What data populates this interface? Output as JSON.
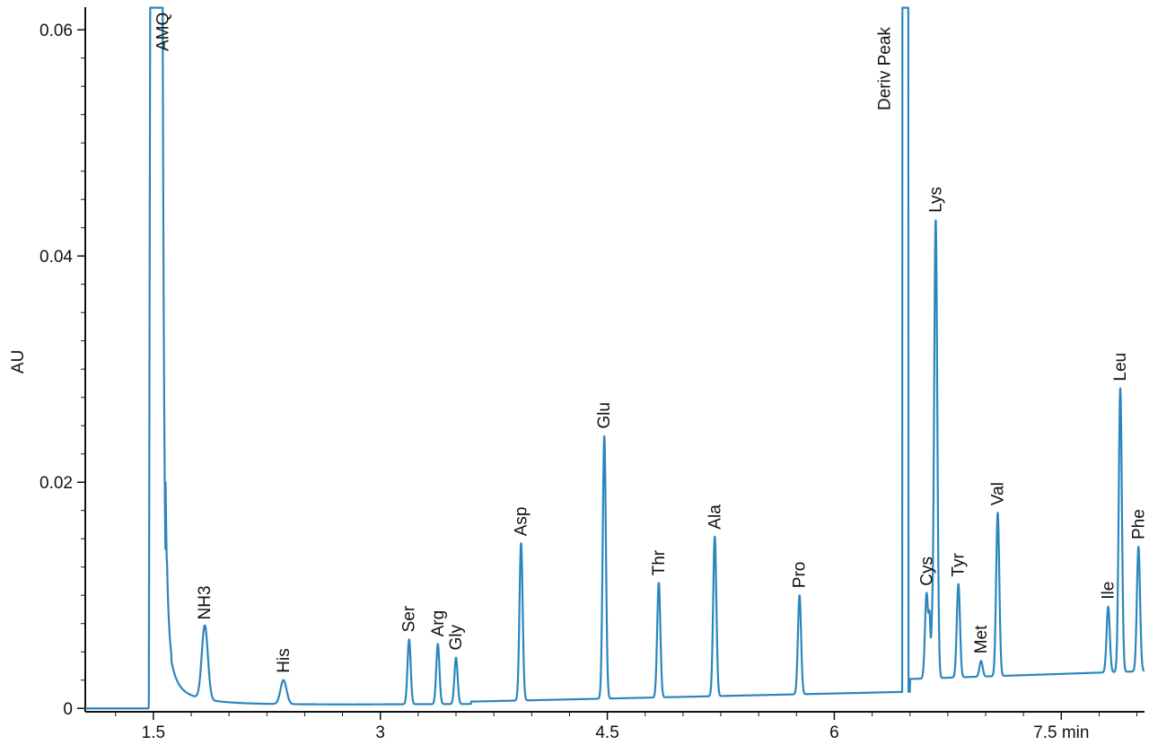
{
  "chart_data": {
    "type": "line",
    "title": "",
    "xlabel": "",
    "ylabel": "AU",
    "x_unit": "min",
    "xlim": [
      1.05,
      8.05
    ],
    "ylim": [
      -0.0003,
      0.062
    ],
    "x_ticks": [
      {
        "value": 1.5,
        "label": "1.5"
      },
      {
        "value": 3,
        "label": "3"
      },
      {
        "value": 4.5,
        "label": "4.5"
      },
      {
        "value": 6,
        "label": "6"
      },
      {
        "value": 7.5,
        "label": "7.5 min"
      }
    ],
    "y_ticks": [
      {
        "value": 0,
        "label": "0"
      },
      {
        "value": 0.02,
        "label": "0.02"
      },
      {
        "value": 0.04,
        "label": "0.04"
      },
      {
        "value": 0.06,
        "label": "0.06"
      }
    ],
    "grid": false,
    "legend": "none",
    "line_color": "#2a86bb",
    "peaks": [
      {
        "name": "AMQ",
        "rt": 1.55,
        "height": 0.062,
        "clipped": true
      },
      {
        "name": "NH3",
        "rt": 1.84,
        "height": 0.0072
      },
      {
        "name": "His",
        "rt": 2.36,
        "height": 0.0025
      },
      {
        "name": "Ser",
        "rt": 3.19,
        "height": 0.0061
      },
      {
        "name": "Arg",
        "rt": 3.38,
        "height": 0.0057
      },
      {
        "name": "Gly",
        "rt": 3.5,
        "height": 0.0045
      },
      {
        "name": "Asp",
        "rt": 3.93,
        "height": 0.0146
      },
      {
        "name": "Glu",
        "rt": 4.48,
        "height": 0.0241
      },
      {
        "name": "Thr",
        "rt": 4.84,
        "height": 0.0111
      },
      {
        "name": "Ala",
        "rt": 5.21,
        "height": 0.0152
      },
      {
        "name": "Pro",
        "rt": 5.77,
        "height": 0.01
      },
      {
        "name": "Deriv Peak",
        "rt": 6.47,
        "height": 0.062,
        "clipped": true
      },
      {
        "name": "Cys",
        "rt": 6.61,
        "height": 0.0102
      },
      {
        "name": "Lys",
        "rt": 6.67,
        "height": 0.0432
      },
      {
        "name": "Tyr",
        "rt": 6.82,
        "height": 0.011
      },
      {
        "name": "Met",
        "rt": 6.97,
        "height": 0.0042
      },
      {
        "name": "Val",
        "rt": 7.08,
        "height": 0.0173
      },
      {
        "name": "Ile",
        "rt": 7.81,
        "height": 0.009
      },
      {
        "name": "Leu",
        "rt": 7.89,
        "height": 0.0283
      },
      {
        "name": "Phe",
        "rt": 8.01,
        "height": 0.0143
      }
    ]
  }
}
